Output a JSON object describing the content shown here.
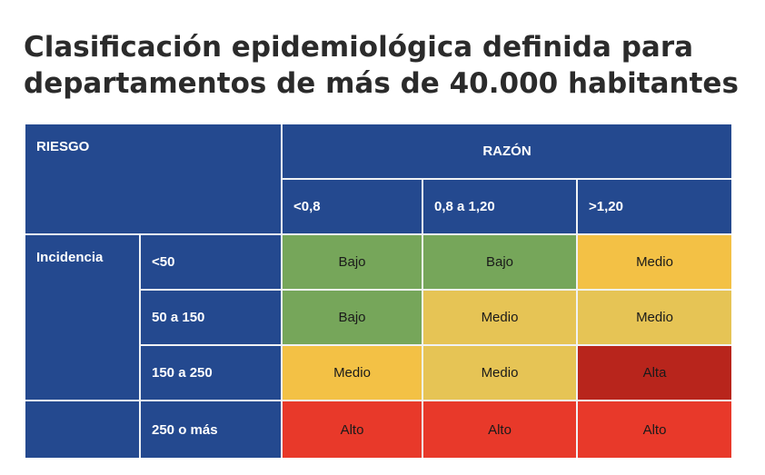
{
  "title": "Clasificación epidemiológica definida para departamentos de más de 40.000 habitantes",
  "table": {
    "riesgo_label": "RIESGO",
    "razon_label": "RAZÓN",
    "incidencia_label": "Incidencia",
    "razon_columns": [
      "<0,8",
      "0,8 a 1,20",
      ">1,20"
    ],
    "rows": [
      {
        "incidencia": "<50",
        "cells": [
          "Bajo",
          "Bajo",
          "Medio"
        ]
      },
      {
        "incidencia": "50 a 150",
        "cells": [
          "Bajo",
          "Medio",
          "Medio"
        ]
      },
      {
        "incidencia": "150 a 250",
        "cells": [
          "Medio",
          "Medio",
          "Alta"
        ]
      },
      {
        "incidencia": "250 o más",
        "cells": [
          "Alto",
          "Alto",
          "Alto"
        ]
      }
    ],
    "colors": {
      "header_blue": "#24498f",
      "bajo_green": "#76a65a",
      "medio_yellow": "#f3c145",
      "medio_yellow_alt": "#e6c455",
      "alta_dark_red": "#b8251c",
      "alto_red": "#e8392a"
    }
  }
}
